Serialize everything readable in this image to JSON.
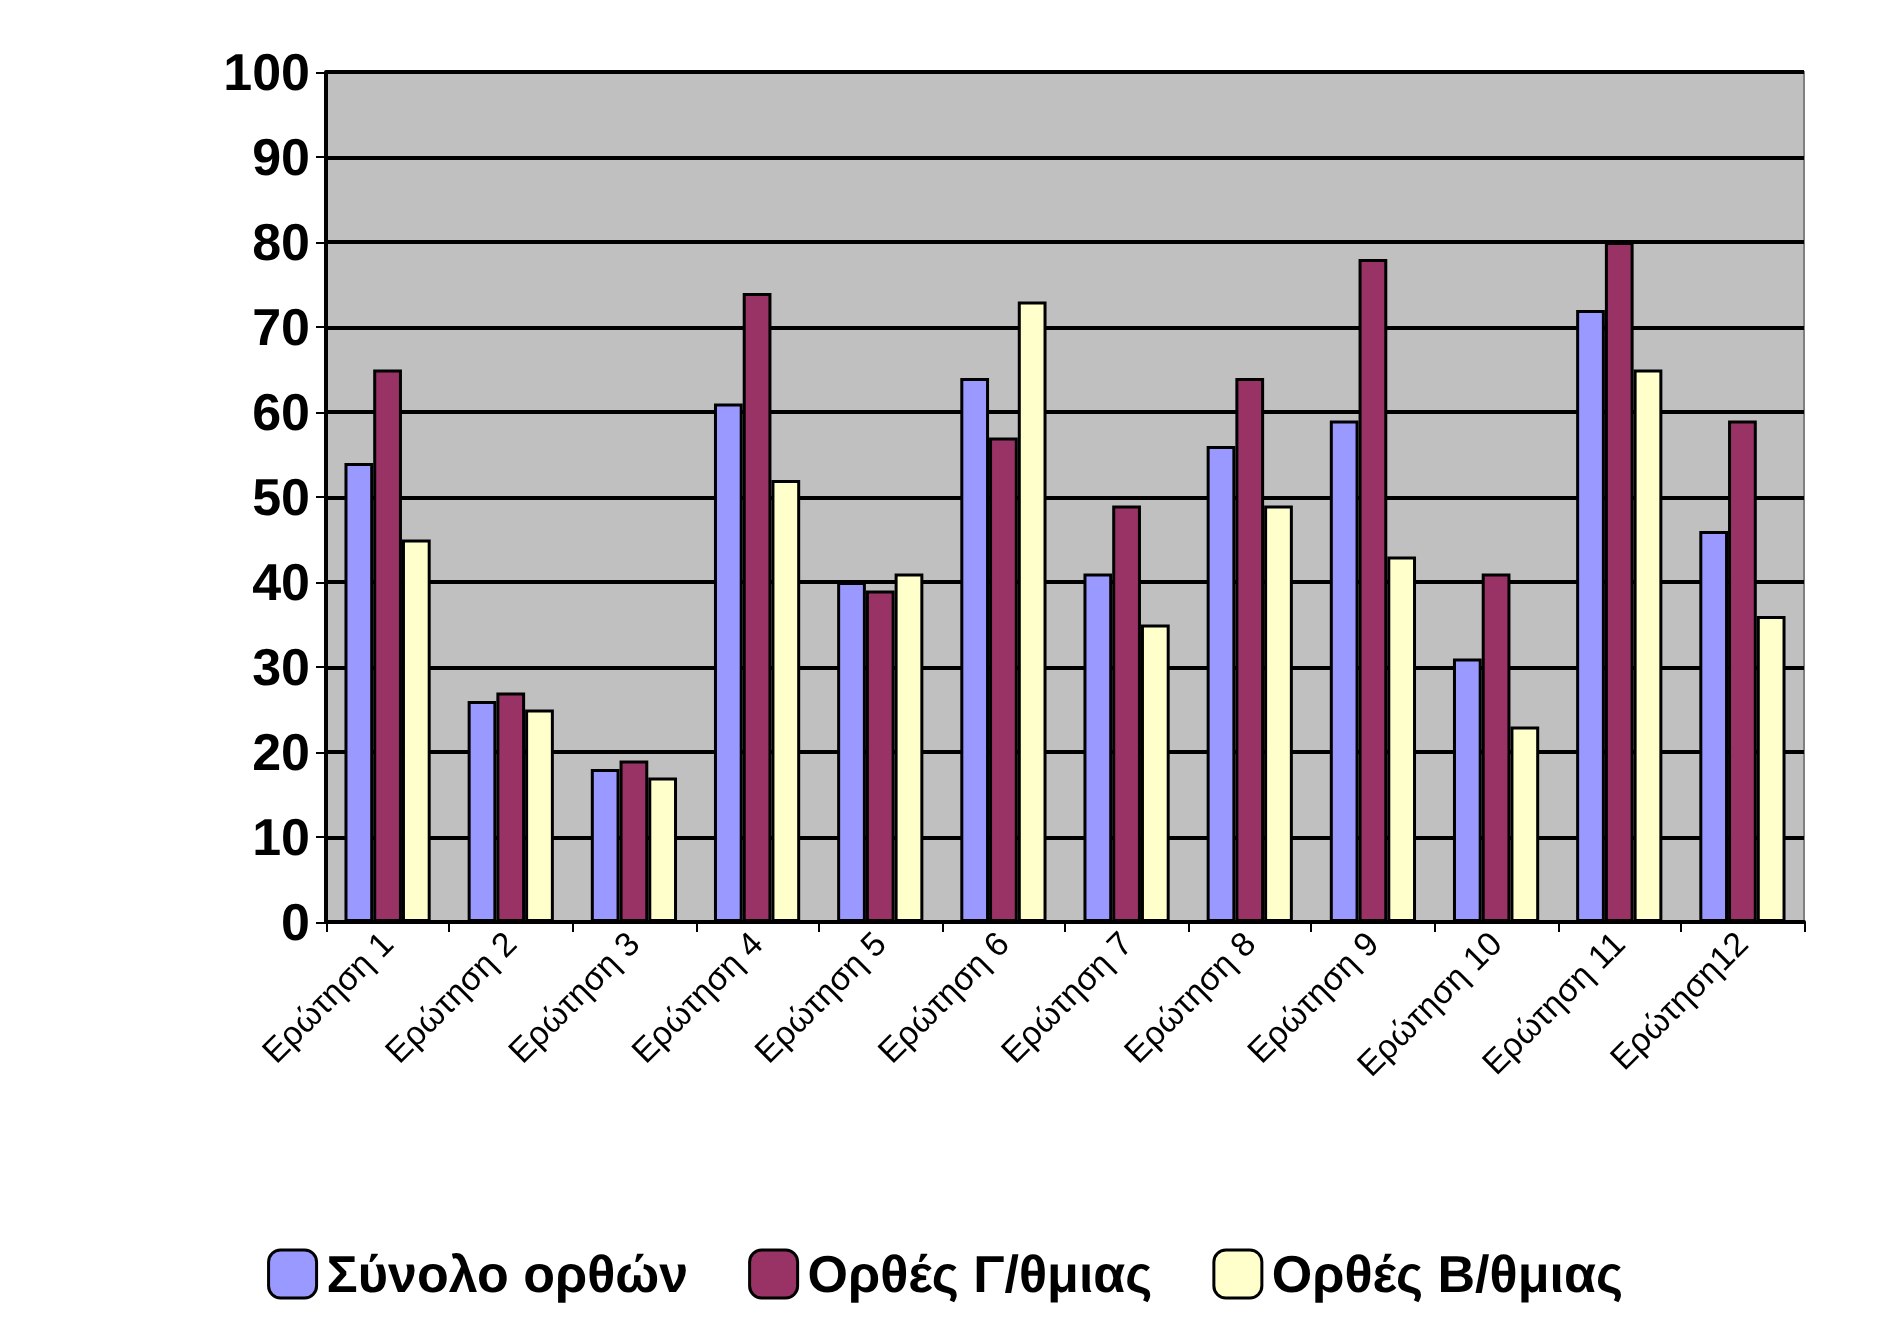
{
  "chart_data": {
    "type": "bar",
    "categories": [
      "Ερώτηση 1",
      "Ερώτηση 2",
      "Ερώτηση 3",
      "Ερώτηση 4",
      "Ερώτηση 5",
      "Ερώτηση 6",
      "Ερώτηση 7",
      "Ερώτηση 8",
      "Ερώτηση 9",
      "Ερώτηση 10",
      "Ερώτηση 11",
      "Ερώτηση12"
    ],
    "series": [
      {
        "name": "Σύνολο ορθών",
        "color": "#9999ff",
        "values": [
          54,
          26,
          18,
          61,
          40,
          64,
          41,
          56,
          59,
          31,
          72,
          46
        ]
      },
      {
        "name": "Ορθές Γ/θμιας",
        "color": "#993366",
        "values": [
          65,
          27,
          19,
          74,
          39,
          57,
          49,
          64,
          78,
          41,
          80,
          59
        ]
      },
      {
        "name": "Ορθές Β/θμιας",
        "color": "#ffffcc",
        "values": [
          45,
          25,
          17,
          52,
          41,
          73,
          35,
          49,
          43,
          23,
          65,
          36
        ]
      }
    ],
    "ylim": [
      0,
      100
    ],
    "yticks": [
      0,
      10,
      20,
      30,
      40,
      50,
      60,
      70,
      80,
      90,
      100
    ],
    "grid": "y",
    "legend": "bottom"
  }
}
